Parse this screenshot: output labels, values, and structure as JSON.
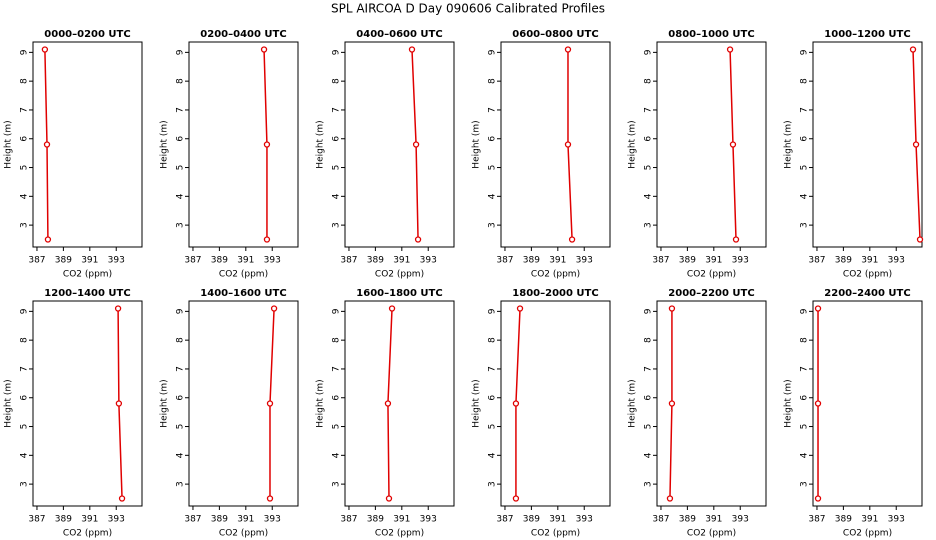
{
  "title": "SPL AIRCOA D  Day 090606  Calibrated Profiles",
  "chart_data": [
    {
      "type": "line",
      "title": "0000–0200 UTC",
      "xlabel": "CO2 (ppm)",
      "ylabel": "Height (m)",
      "color": "#e00000",
      "x": [
        387.6,
        387.76,
        387.83
      ],
      "values": [
        9.1,
        5.8,
        2.5
      ],
      "xlim": [
        386.7,
        394.95
      ],
      "ylim": [
        2.24,
        9.36
      ],
      "xticks": [
        387,
        389,
        391,
        393
      ],
      "yticks": [
        3,
        4,
        5,
        6,
        7,
        8,
        9
      ]
    },
    {
      "type": "line",
      "title": "0200–0400 UTC",
      "xlabel": "CO2 (ppm)",
      "ylabel": "Height (m)",
      "color": "#e00000",
      "x": [
        392.38,
        392.6,
        392.6
      ],
      "values": [
        9.1,
        5.8,
        2.5
      ],
      "xlim": [
        386.7,
        394.95
      ],
      "ylim": [
        2.24,
        9.36
      ],
      "xticks": [
        387,
        389,
        391,
        393
      ],
      "yticks": [
        3,
        4,
        5,
        6,
        7,
        8,
        9
      ]
    },
    {
      "type": "line",
      "title": "0400–0600 UTC",
      "xlabel": "CO2 (ppm)",
      "ylabel": "Height (m)",
      "color": "#e00000",
      "x": [
        391.77,
        392.08,
        392.23
      ],
      "values": [
        9.1,
        5.8,
        2.5
      ],
      "xlim": [
        386.7,
        394.95
      ],
      "ylim": [
        2.24,
        9.36
      ],
      "xticks": [
        387,
        389,
        391,
        393
      ],
      "yticks": [
        3,
        4,
        5,
        6,
        7,
        8,
        9
      ]
    },
    {
      "type": "line",
      "title": "0600–0800 UTC",
      "xlabel": "CO2 (ppm)",
      "ylabel": "Height (m)",
      "color": "#e00000",
      "x": [
        391.77,
        391.77,
        392.08
      ],
      "values": [
        9.1,
        5.8,
        2.5
      ],
      "xlim": [
        386.7,
        394.95
      ],
      "ylim": [
        2.24,
        9.36
      ],
      "xticks": [
        387,
        389,
        391,
        393
      ],
      "yticks": [
        3,
        4,
        5,
        6,
        7,
        8,
        9
      ]
    },
    {
      "type": "line",
      "title": "0800–1000 UTC",
      "xlabel": "CO2 (ppm)",
      "ylabel": "Height (m)",
      "color": "#e00000",
      "x": [
        392.23,
        392.45,
        392.68
      ],
      "values": [
        9.1,
        5.8,
        2.5
      ],
      "xlim": [
        386.7,
        394.95
      ],
      "ylim": [
        2.24,
        9.36
      ],
      "xticks": [
        387,
        389,
        391,
        393
      ],
      "yticks": [
        3,
        4,
        5,
        6,
        7,
        8,
        9
      ]
    },
    {
      "type": "line",
      "title": "1000–1200 UTC",
      "xlabel": "CO2 (ppm)",
      "ylabel": "Height (m)",
      "color": "#e00000",
      "x": [
        394.27,
        394.5,
        394.8
      ],
      "values": [
        9.1,
        5.8,
        2.5
      ],
      "xlim": [
        386.7,
        394.95
      ],
      "ylim": [
        2.24,
        9.36
      ],
      "xticks": [
        387,
        389,
        391,
        393
      ],
      "yticks": [
        3,
        4,
        5,
        6,
        7,
        8,
        9
      ]
    },
    {
      "type": "line",
      "title": "1200–1400 UTC",
      "xlabel": "CO2 (ppm)",
      "ylabel": "Height (m)",
      "color": "#e00000",
      "x": [
        393.14,
        393.2,
        393.44
      ],
      "values": [
        9.1,
        5.8,
        2.5
      ],
      "xlim": [
        386.7,
        394.95
      ],
      "ylim": [
        2.24,
        9.36
      ],
      "xticks": [
        387,
        389,
        391,
        393
      ],
      "yticks": [
        3,
        4,
        5,
        6,
        7,
        8,
        9
      ]
    },
    {
      "type": "line",
      "title": "1400–1600 UTC",
      "xlabel": "CO2 (ppm)",
      "ylabel": "Height (m)",
      "color": "#e00000",
      "x": [
        393.14,
        392.83,
        392.83
      ],
      "values": [
        9.1,
        5.8,
        2.5
      ],
      "xlim": [
        386.7,
        394.95
      ],
      "ylim": [
        2.24,
        9.36
      ],
      "xticks": [
        387,
        389,
        391,
        393
      ],
      "yticks": [
        3,
        4,
        5,
        6,
        7,
        8,
        9
      ]
    },
    {
      "type": "line",
      "title": "1600–1800 UTC",
      "xlabel": "CO2 (ppm)",
      "ylabel": "Height (m)",
      "color": "#e00000",
      "x": [
        390.26,
        389.95,
        390.03
      ],
      "values": [
        9.1,
        5.8,
        2.5
      ],
      "xlim": [
        386.7,
        394.95
      ],
      "ylim": [
        2.24,
        9.36
      ],
      "xticks": [
        387,
        389,
        391,
        393
      ],
      "yticks": [
        3,
        4,
        5,
        6,
        7,
        8,
        9
      ]
    },
    {
      "type": "line",
      "title": "1800–2000 UTC",
      "xlabel": "CO2 (ppm)",
      "ylabel": "Height (m)",
      "color": "#e00000",
      "x": [
        388.14,
        387.83,
        387.83
      ],
      "values": [
        9.1,
        5.8,
        2.5
      ],
      "xlim": [
        386.7,
        394.95
      ],
      "ylim": [
        2.24,
        9.36
      ],
      "xticks": [
        387,
        389,
        391,
        393
      ],
      "yticks": [
        3,
        4,
        5,
        6,
        7,
        8,
        9
      ]
    },
    {
      "type": "line",
      "title": "2000–2200 UTC",
      "xlabel": "CO2 (ppm)",
      "ylabel": "Height (m)",
      "color": "#e00000",
      "x": [
        387.83,
        387.83,
        387.68
      ],
      "values": [
        9.1,
        5.8,
        2.5
      ],
      "xlim": [
        386.7,
        394.95
      ],
      "ylim": [
        2.24,
        9.36
      ],
      "xticks": [
        387,
        389,
        391,
        393
      ],
      "yticks": [
        3,
        4,
        5,
        6,
        7,
        8,
        9
      ]
    },
    {
      "type": "line",
      "title": "2200–2400 UTC",
      "xlabel": "CO2 (ppm)",
      "ylabel": "Height (m)",
      "color": "#e00000",
      "x": [
        387.08,
        387.08,
        387.08
      ],
      "values": [
        9.1,
        5.8,
        2.5
      ],
      "xlim": [
        386.7,
        394.95
      ],
      "ylim": [
        2.24,
        9.36
      ],
      "xticks": [
        387,
        389,
        391,
        393
      ],
      "yticks": [
        3,
        4,
        5,
        6,
        7,
        8,
        9
      ]
    }
  ]
}
